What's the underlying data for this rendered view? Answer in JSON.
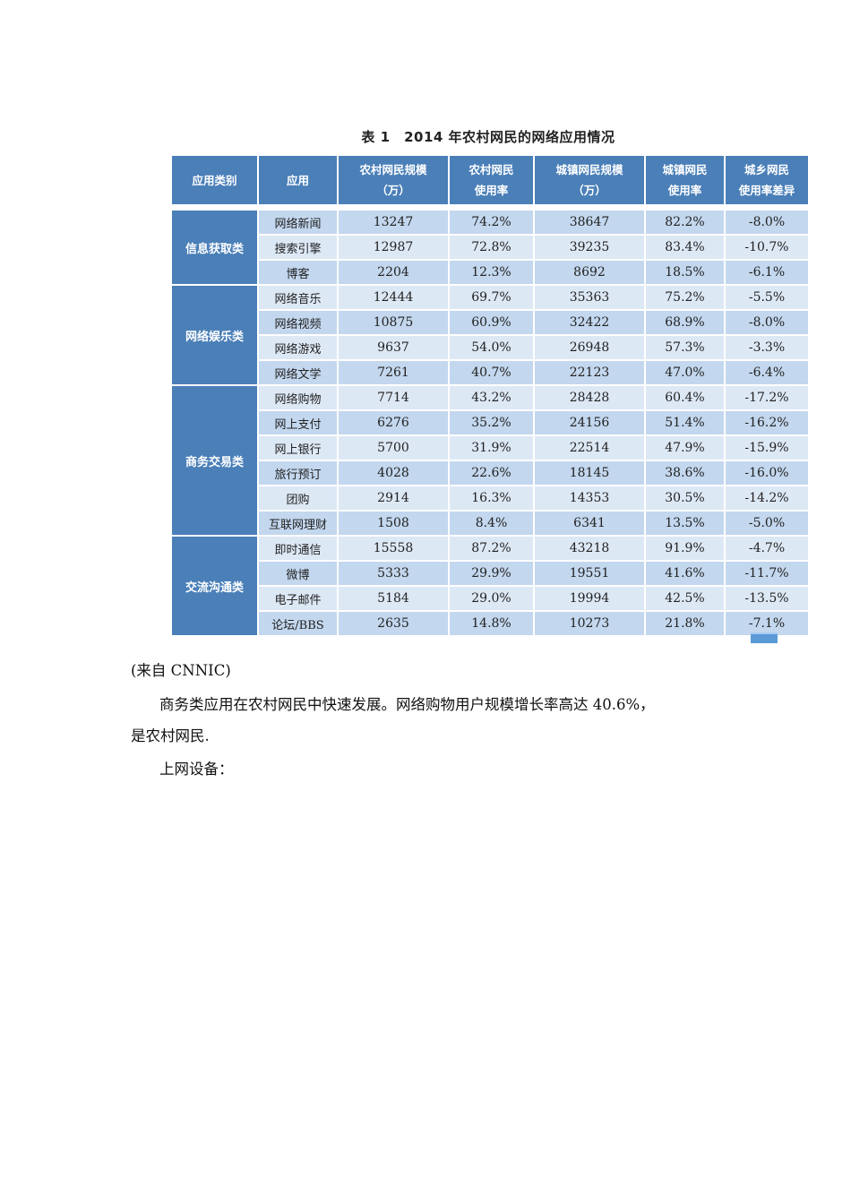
{
  "table": {
    "caption": "表 1　2014 年农村网民的网络应用情况",
    "headers": [
      [
        "应用类别"
      ],
      [
        "应用"
      ],
      [
        "农村网民规模",
        "（万）"
      ],
      [
        "农村网民",
        "使用率"
      ],
      [
        "城镇网民规模",
        "（万）"
      ],
      [
        "城镇网民",
        "使用率"
      ],
      [
        "城乡网民",
        "使用率差异"
      ]
    ],
    "groups": [
      {
        "category": "信息获取类",
        "rows": [
          [
            "网络新闻",
            "13247",
            "74.2%",
            "38647",
            "82.2%",
            "-8.0%"
          ],
          [
            "搜索引擎",
            "12987",
            "72.8%",
            "39235",
            "83.4%",
            "-10.7%"
          ],
          [
            "博客",
            "2204",
            "12.3%",
            "8692",
            "18.5%",
            "-6.1%"
          ]
        ]
      },
      {
        "category": "网络娱乐类",
        "rows": [
          [
            "网络音乐",
            "12444",
            "69.7%",
            "35363",
            "75.2%",
            "-5.5%"
          ],
          [
            "网络视频",
            "10875",
            "60.9%",
            "32422",
            "68.9%",
            "-8.0%"
          ],
          [
            "网络游戏",
            "9637",
            "54.0%",
            "26948",
            "57.3%",
            "-3.3%"
          ],
          [
            "网络文学",
            "7261",
            "40.7%",
            "22123",
            "47.0%",
            "-6.4%"
          ]
        ]
      },
      {
        "category": "商务交易类",
        "rows": [
          [
            "网络购物",
            "7714",
            "43.2%",
            "28428",
            "60.4%",
            "-17.2%"
          ],
          [
            "网上支付",
            "6276",
            "35.2%",
            "24156",
            "51.4%",
            "-16.2%"
          ],
          [
            "网上银行",
            "5700",
            "31.9%",
            "22514",
            "47.9%",
            "-15.9%"
          ],
          [
            "旅行预订",
            "4028",
            "22.6%",
            "18145",
            "38.6%",
            "-16.0%"
          ],
          [
            "团购",
            "2914",
            "16.3%",
            "14353",
            "30.5%",
            "-14.2%"
          ],
          [
            "互联网理财",
            "1508",
            "8.4%",
            "6341",
            "13.5%",
            "-5.0%"
          ]
        ]
      },
      {
        "category": "交流沟通类",
        "rows": [
          [
            "即时通信",
            "15558",
            "87.2%",
            "43218",
            "91.9%",
            "-4.7%"
          ],
          [
            "微博",
            "5333",
            "29.9%",
            "19551",
            "41.6%",
            "-11.7%"
          ],
          [
            "电子邮件",
            "5184",
            "29.0%",
            "19994",
            "42.5%",
            "-13.5%"
          ],
          [
            "论坛/BBS",
            "2635",
            "14.8%",
            "10273",
            "21.8%",
            "-7.1%"
          ]
        ]
      }
    ]
  },
  "source": "(来自 CNNIC)",
  "paragraphs": [
    "商务类应用在农村网民中快速发展。网络购物用户规模增长率高达 40.6%，",
    "是农村网民.",
    "上网设备："
  ],
  "colors": {
    "header_bg": "#4a7fb8",
    "row_dark": "#c3d7ee",
    "row_light": "#dde8f5"
  }
}
